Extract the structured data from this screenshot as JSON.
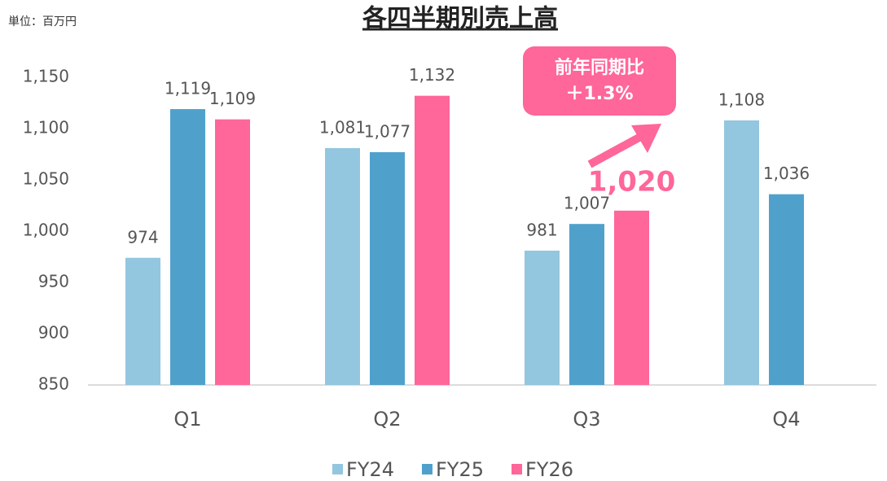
{
  "chart_data": {
    "type": "bar",
    "title": "各四半期別売上高",
    "unit_note": "単位：百万円",
    "callout": {
      "title": "前年同期比",
      "text": "＋1.3%"
    },
    "categories": [
      "Q1",
      "Q2",
      "Q3",
      "Q4"
    ],
    "series": [
      {
        "name": "FY24",
        "color": "#93c6df",
        "values": [
          974,
          1081,
          981,
          1108
        ],
        "value_labels": [
          "974",
          "1,081",
          "981",
          "1,108"
        ]
      },
      {
        "name": "FY25",
        "color": "#4fa1cc",
        "values": [
          1119,
          1077,
          1007,
          1036
        ],
        "value_labels": [
          "1,119",
          "1,077",
          "1,007",
          "1,036"
        ]
      },
      {
        "name": "FY26",
        "color": "#ff6699",
        "values": [
          1109,
          1132,
          1020,
          null
        ],
        "value_labels": [
          "1,109",
          "1,132",
          "1,020",
          null
        ]
      }
    ],
    "ylim": [
      850,
      1150
    ],
    "yticks": [
      850,
      900,
      950,
      {
        "value": 1000,
        "label": "1,000"
      },
      {
        "value": 1050,
        "label": "1,050"
      },
      {
        "value": 1100,
        "label": "1,100"
      },
      {
        "value": 1150,
        "label": "1,150"
      }
    ],
    "grid": false,
    "legend": "bottom"
  }
}
